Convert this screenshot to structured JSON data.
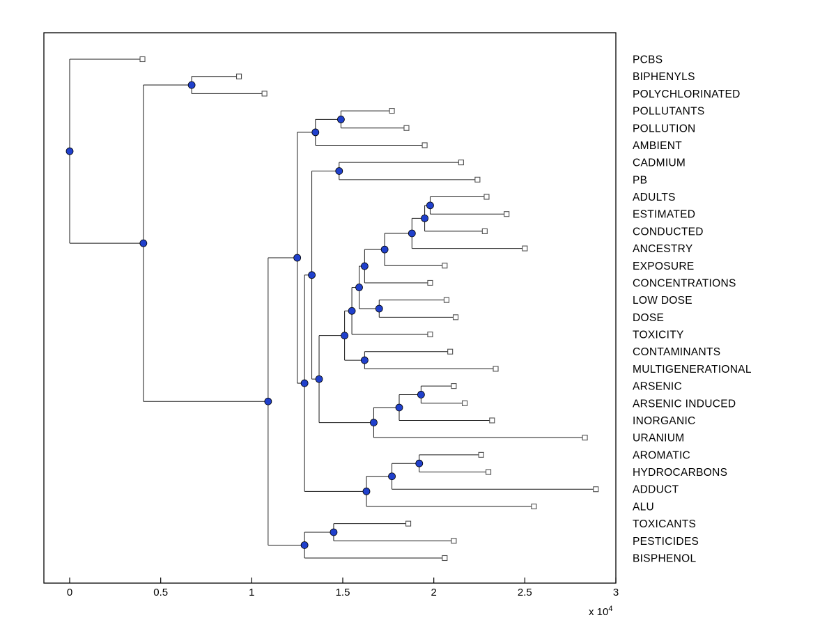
{
  "figure": {
    "background": "#ffffff"
  },
  "chart_data": {
    "type": "dendrogram",
    "title": "",
    "orientation": "left-to-right",
    "description": "Hierarchical cluster tree (phylogenetic-style plot) of toxicology/pollution related terms; branch nodes are filled blue circles, leaf nodes are open squares, leaf labels listed on the right.",
    "x_axis": {
      "tick_labels": [
        "0",
        "0.5",
        "1",
        "1.5",
        "2",
        "2.5",
        "3"
      ],
      "tick_values": [
        0,
        5000,
        10000,
        15000,
        20000,
        25000,
        30000
      ],
      "multiplier_label": "x 10",
      "multiplier_exponent": "4",
      "xlim": [
        -1500,
        30000
      ],
      "grid": false
    },
    "styles": {
      "branch_color": "#1a1a1a",
      "node_fill": "#2040cc",
      "node_edge": "#000000",
      "leaf_fill": "#ffffff",
      "leaf_edge": "#4d4d4d",
      "label_color": "#000000"
    },
    "leaves": [
      {
        "label": "PCBS",
        "x": 4000
      },
      {
        "label": "BIPHENYLS",
        "x": 9300
      },
      {
        "label": "POLYCHLORINATED",
        "x": 10700
      },
      {
        "label": "POLLUTANTS",
        "x": 17700
      },
      {
        "label": "POLLUTION",
        "x": 18500
      },
      {
        "label": "AMBIENT",
        "x": 19500
      },
      {
        "label": "CADMIUM",
        "x": 21500
      },
      {
        "label": "PB",
        "x": 22400
      },
      {
        "label": "ADULTS",
        "x": 22900
      },
      {
        "label": "ESTIMATED",
        "x": 24000
      },
      {
        "label": "CONDUCTED",
        "x": 22800
      },
      {
        "label": "ANCESTRY",
        "x": 25000
      },
      {
        "label": "EXPOSURE",
        "x": 20600
      },
      {
        "label": "CONCENTRATIONS",
        "x": 19800
      },
      {
        "label": "LOW DOSE",
        "x": 20700
      },
      {
        "label": "DOSE",
        "x": 21200
      },
      {
        "label": "TOXICITY",
        "x": 19800
      },
      {
        "label": "CONTAMINANTS",
        "x": 20900
      },
      {
        "label": "MULTIGENERATIONAL",
        "x": 23400
      },
      {
        "label": "ARSENIC",
        "x": 21100
      },
      {
        "label": "ARSENIC INDUCED",
        "x": 21700
      },
      {
        "label": "INORGANIC",
        "x": 23200
      },
      {
        "label": "URANIUM",
        "x": 28300
      },
      {
        "label": "AROMATIC",
        "x": 22600
      },
      {
        "label": "HYDROCARBONS",
        "x": 23000
      },
      {
        "label": "ADDUCT",
        "x": 28900
      },
      {
        "label": "ALU",
        "x": 25500
      },
      {
        "label": "TOXICANTS",
        "x": 18600
      },
      {
        "label": "PESTICIDES",
        "x": 21100
      },
      {
        "label": "BISPHENOL",
        "x": 20600
      }
    ],
    "tree": {
      "x": 0,
      "c": [
        {
          "leaf": 0
        },
        {
          "x": 4050,
          "c": [
            {
              "x": 6700,
              "c": [
                {
                  "leaf": 1
                },
                {
                  "leaf": 2
                }
              ]
            },
            {
              "x": 10900,
              "c": [
                {
                  "x": 12500,
                  "c": [
                    {
                      "x": 13500,
                      "c": [
                        {
                          "x": 14900,
                          "c": [
                            {
                              "leaf": 3
                            },
                            {
                              "leaf": 4
                            }
                          ]
                        },
                        {
                          "leaf": 5
                        }
                      ]
                    },
                    {
                      "x": 12900,
                      "c": [
                        {
                          "x": 13300,
                          "c": [
                            {
                              "x": 14800,
                              "c": [
                                {
                                  "leaf": 6
                                },
                                {
                                  "leaf": 7
                                }
                              ]
                            },
                            {
                              "x": 13700,
                              "c": [
                                {
                                  "x": 15100,
                                  "c": [
                                    {
                                      "x": 15500,
                                      "c": [
                                        {
                                          "x": 15900,
                                          "c": [
                                            {
                                              "x": 16200,
                                              "c": [
                                                {
                                                  "x": 17300,
                                                  "c": [
                                                    {
                                                      "x": 18800,
                                                      "c": [
                                                        {
                                                          "x": 19500,
                                                          "c": [
                                                            {
                                                              "x": 19800,
                                                              "c": [
                                                                {
                                                                  "leaf": 8
                                                                },
                                                                {
                                                                  "leaf": 9
                                                                }
                                                              ]
                                                            },
                                                            {
                                                              "leaf": 10
                                                            }
                                                          ]
                                                        },
                                                        {
                                                          "leaf": 11
                                                        }
                                                      ]
                                                    },
                                                    {
                                                      "leaf": 12
                                                    }
                                                  ]
                                                },
                                                {
                                                  "leaf": 13
                                                }
                                              ]
                                            },
                                            {
                                              "x": 17000,
                                              "c": [
                                                {
                                                  "leaf": 14
                                                },
                                                {
                                                  "leaf": 15
                                                }
                                              ]
                                            }
                                          ]
                                        },
                                        {
                                          "leaf": 16
                                        }
                                      ]
                                    },
                                    {
                                      "x": 16200,
                                      "c": [
                                        {
                                          "leaf": 17
                                        },
                                        {
                                          "leaf": 18
                                        }
                                      ]
                                    }
                                  ]
                                },
                                {
                                  "x": 16700,
                                  "c": [
                                    {
                                      "x": 18100,
                                      "c": [
                                        {
                                          "x": 19300,
                                          "c": [
                                            {
                                              "leaf": 19
                                            },
                                            {
                                              "leaf": 20
                                            }
                                          ]
                                        },
                                        {
                                          "leaf": 21
                                        }
                                      ]
                                    },
                                    {
                                      "leaf": 22
                                    }
                                  ]
                                }
                              ]
                            }
                          ]
                        },
                        {
                          "x": 16300,
                          "c": [
                            {
                              "x": 17700,
                              "c": [
                                {
                                  "x": 19200,
                                  "c": [
                                    {
                                      "leaf": 23
                                    },
                                    {
                                      "leaf": 24
                                    }
                                  ]
                                },
                                {
                                  "leaf": 25
                                }
                              ]
                            },
                            {
                              "leaf": 26
                            }
                          ]
                        }
                      ]
                    }
                  ]
                },
                {
                  "x": 12900,
                  "c": [
                    {
                      "x": 14500,
                      "c": [
                        {
                          "leaf": 27
                        },
                        {
                          "leaf": 28
                        }
                      ]
                    },
                    {
                      "leaf": 29
                    }
                  ]
                }
              ]
            }
          ]
        }
      ]
    }
  }
}
